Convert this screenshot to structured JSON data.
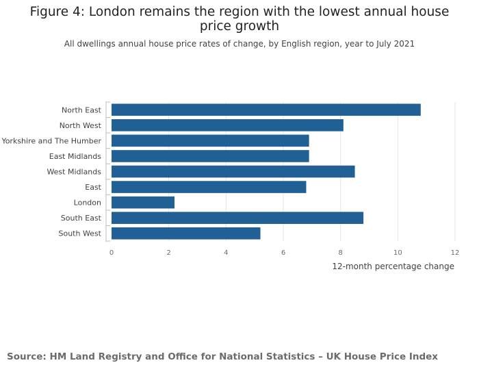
{
  "header": {
    "title": "Figure 4: London remains the region with the lowest annual house price growth",
    "subtitle": "All dwellings annual house price rates of change, by English region, year to July 2021"
  },
  "footer": {
    "source": "Source: HM Land Registry and Office for National Statistics – UK House Price Index"
  },
  "colors": {
    "bar": "#206095",
    "grid": "#e3e3e3",
    "axis": "#bdbdbd",
    "label": "#414042"
  },
  "chart_data": {
    "type": "bar",
    "orientation": "horizontal",
    "categories": [
      "North East",
      "North West",
      "Yorkshire and The Humber",
      "East Midlands",
      "West Midlands",
      "East",
      "London",
      "South East",
      "South West"
    ],
    "values": [
      10.8,
      8.1,
      6.9,
      6.9,
      8.5,
      6.8,
      2.2,
      8.8,
      5.2
    ],
    "xlabel": "12-month percentage change",
    "ylabel": "",
    "xlim": [
      0,
      12
    ],
    "xticks": [
      0,
      2,
      4,
      6,
      8,
      10,
      12
    ],
    "grid": true,
    "legend": "none"
  }
}
